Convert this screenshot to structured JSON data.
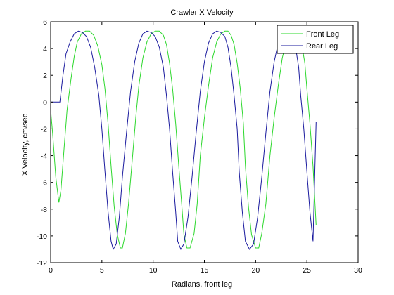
{
  "chart_data": {
    "type": "line",
    "title": "Crawler X Velocity",
    "xlabel": "Radians, front leg",
    "ylabel": "X Velocity, cm/sec",
    "xlim": [
      0,
      30
    ],
    "ylim": [
      -12,
      6
    ],
    "xticks": [
      0,
      5,
      10,
      15,
      20,
      25,
      30
    ],
    "yticks": [
      -12,
      -10,
      -8,
      -6,
      -4,
      -2,
      0,
      2,
      4,
      6
    ],
    "grid": false,
    "legend_position": "top-right",
    "series": [
      {
        "name": "Front Leg",
        "color": "#2ed82e",
        "x": [
          0.0,
          0.2,
          0.5,
          0.8,
          1.0,
          1.3,
          1.6,
          2.0,
          2.3,
          2.6,
          3.0,
          3.4,
          3.8,
          4.2,
          4.6,
          5.0,
          5.3,
          5.6,
          5.9,
          6.2,
          6.5,
          6.8,
          7.0,
          7.3,
          7.6,
          8.0,
          8.3,
          8.6,
          9.0,
          9.4,
          9.8,
          10.2,
          10.6,
          11.0,
          11.3,
          11.6,
          11.9,
          12.2,
          12.5,
          12.8,
          13.0,
          13.3,
          13.6,
          14.0,
          14.3,
          14.6,
          15.0,
          15.4,
          15.8,
          16.2,
          16.6,
          17.0,
          17.3,
          17.6,
          17.9,
          18.2,
          18.5,
          18.8,
          19.0,
          19.3,
          19.6,
          20.0,
          20.3,
          20.6,
          21.0,
          21.4,
          21.8,
          22.2,
          22.6,
          23.0,
          23.3,
          23.6,
          23.9,
          24.2,
          24.5,
          24.8,
          25.0,
          25.3,
          25.6,
          25.9
        ],
        "y": [
          -0.6,
          -2.4,
          -5.6,
          -7.5,
          -6.6,
          -3.6,
          -0.6,
          1.8,
          3.4,
          4.5,
          5.1,
          5.3,
          5.3,
          5.0,
          4.2,
          2.8,
          1.0,
          -1.6,
          -4.8,
          -7.8,
          -9.9,
          -10.9,
          -10.9,
          -9.8,
          -7.6,
          -4.0,
          -1.2,
          1.2,
          3.3,
          4.5,
          5.1,
          5.3,
          5.3,
          5.0,
          4.3,
          2.9,
          1.0,
          -1.6,
          -4.8,
          -7.8,
          -9.9,
          -10.9,
          -10.9,
          -9.8,
          -7.6,
          -4.0,
          -1.2,
          1.2,
          3.3,
          4.5,
          5.1,
          5.3,
          5.3,
          5.0,
          4.3,
          2.9,
          1.0,
          -1.6,
          -4.8,
          -7.8,
          -9.9,
          -10.9,
          -10.9,
          -9.8,
          -7.6,
          -4.0,
          -1.2,
          1.2,
          3.3,
          4.5,
          5.1,
          5.3,
          5.3,
          5.0,
          4.3,
          2.9,
          1.0,
          -1.6,
          -4.8,
          -9.2
        ]
      },
      {
        "name": "Rear Leg",
        "color": "#1a1a9e",
        "x": [
          0.0,
          0.5,
          0.9,
          1.2,
          1.5,
          1.9,
          2.3,
          2.7,
          3.1,
          3.5,
          3.9,
          4.3,
          4.7,
          5.0,
          5.3,
          5.6,
          5.9,
          6.1,
          6.4,
          6.7,
          7.0,
          7.4,
          7.8,
          8.2,
          8.6,
          9.0,
          9.4,
          9.8,
          10.2,
          10.6,
          11.0,
          11.3,
          11.6,
          11.9,
          12.2,
          12.4,
          12.7,
          13.0,
          13.4,
          13.8,
          14.2,
          14.6,
          15.0,
          15.4,
          15.8,
          16.2,
          16.6,
          17.0,
          17.3,
          17.6,
          17.9,
          18.2,
          18.4,
          18.7,
          19.0,
          19.4,
          19.8,
          20.2,
          20.6,
          21.0,
          21.4,
          21.8,
          22.2,
          22.6,
          23.0,
          23.3,
          23.6,
          23.9,
          24.2,
          24.4,
          24.7,
          25.0,
          25.3,
          25.6,
          25.9
        ],
        "y": [
          0.0,
          0.0,
          0.0,
          2.0,
          3.6,
          4.5,
          5.1,
          5.3,
          5.2,
          4.9,
          4.1,
          2.6,
          0.5,
          -2.0,
          -5.2,
          -8.2,
          -10.4,
          -11.0,
          -10.6,
          -8.6,
          -5.6,
          -2.3,
          0.8,
          3.0,
          4.4,
          5.1,
          5.3,
          5.2,
          4.9,
          4.1,
          2.6,
          0.5,
          -2.0,
          -5.2,
          -8.2,
          -10.4,
          -11.0,
          -10.6,
          -8.6,
          -5.6,
          -2.3,
          0.8,
          3.0,
          4.4,
          5.1,
          5.3,
          5.2,
          4.9,
          4.1,
          2.6,
          0.5,
          -2.0,
          -5.2,
          -8.2,
          -10.4,
          -11.0,
          -10.6,
          -8.6,
          -5.6,
          -2.3,
          0.8,
          3.0,
          4.4,
          5.1,
          5.3,
          5.2,
          4.9,
          4.1,
          2.6,
          0.5,
          -2.0,
          -5.2,
          -8.2,
          -10.4,
          -1.5
        ]
      }
    ]
  }
}
